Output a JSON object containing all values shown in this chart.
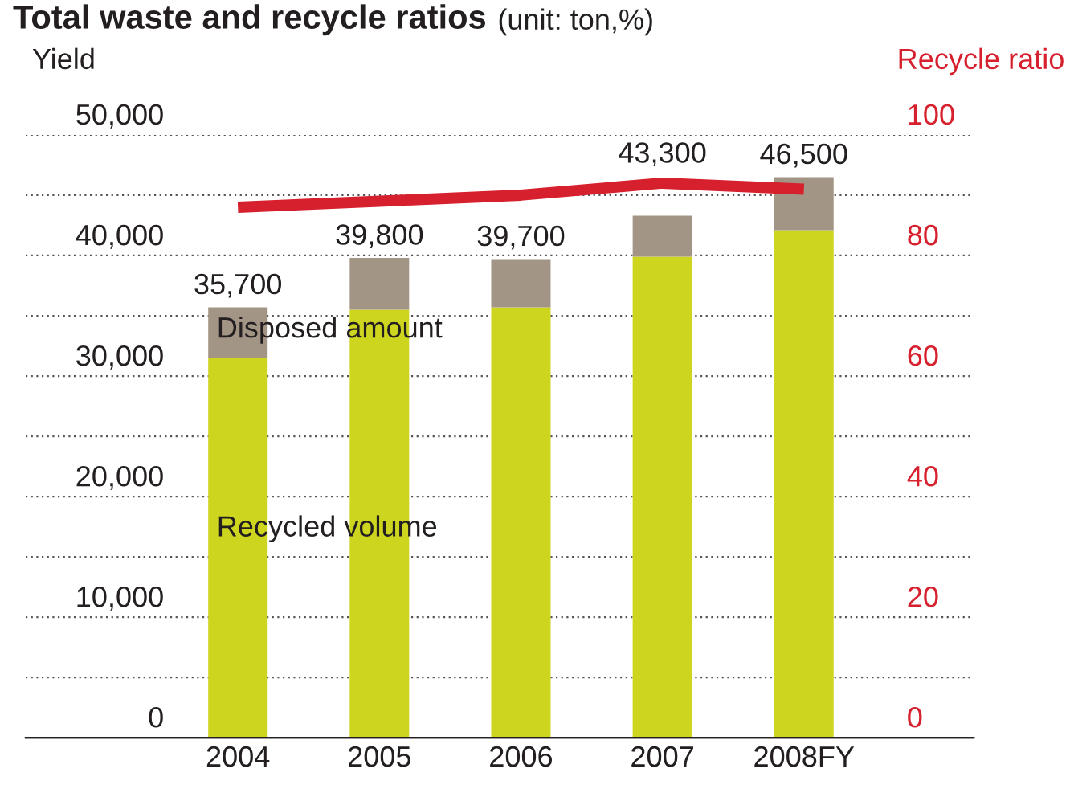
{
  "chart_data": {
    "type": "bar",
    "title": "Total waste and recycle ratios",
    "subtitle": "(unit: ton,%)",
    "ylabel": "Yield",
    "y2label": "Recycle ratio",
    "categories": [
      "2004",
      "2005",
      "2006",
      "2007",
      "2008FY"
    ],
    "stacked": true,
    "series": [
      {
        "name": "Recycled volume",
        "color": "#cdd51f",
        "values": [
          31500,
          35500,
          35700,
          39900,
          42100
        ]
      },
      {
        "name": "Disposed amount",
        "color": "#a39586",
        "values": [
          4200,
          4300,
          4000,
          3400,
          4400
        ]
      },
      {
        "type": "line",
        "axis": "y2",
        "color": "#d7202e",
        "values": [
          88,
          89,
          90,
          92,
          91
        ]
      }
    ],
    "totals": [
      "35,700",
      "39,800",
      "39,700",
      "43,300",
      "46,500"
    ],
    "ylim": [
      0,
      50000
    ],
    "yticks": [
      0,
      {
        "value": 5000,
        "label": null
      },
      {
        "value": 10000,
        "label": "10,000"
      },
      {
        "value": 15000,
        "label": null
      },
      {
        "value": 20000,
        "label": "20,000"
      },
      {
        "value": 25000,
        "label": null
      },
      {
        "value": 30000,
        "label": "30,000"
      },
      {
        "value": 35000,
        "label": null
      },
      {
        "value": 40000,
        "label": "40,000"
      },
      {
        "value": 45000,
        "label": null
      },
      {
        "value": 50000,
        "label": "50,000"
      }
    ],
    "y2lim": [
      0,
      100
    ],
    "y2ticks": [
      0,
      20,
      40,
      60,
      80,
      100
    ],
    "grid": "y"
  }
}
